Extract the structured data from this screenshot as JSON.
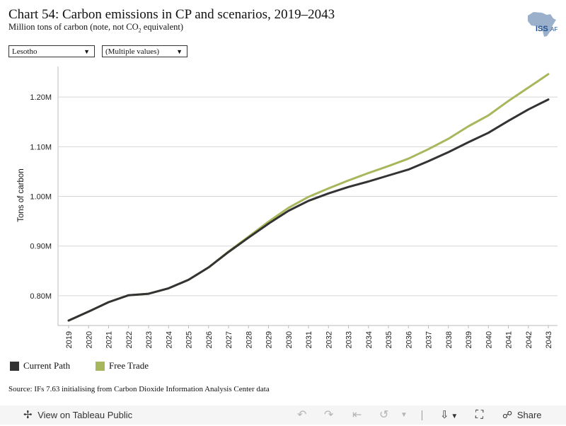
{
  "header": {
    "title": "Chart 54: Carbon emissions in CP and scenarios, 2019–2043",
    "subtitle_pre": "Million tons of carbon (note, not CO",
    "subtitle_sub": "2",
    "subtitle_post": " equivalent)",
    "logo_text": "ISS",
    "logo_suffix": "AF"
  },
  "filters": [
    {
      "value": "Lesotho"
    },
    {
      "value": "(Multiple values)"
    }
  ],
  "colors": {
    "current_path": "#333333",
    "free_trade": "#a7b85c",
    "grid": "#d6d6d6",
    "logo": "#8aa3c2"
  },
  "chart_data": {
    "type": "line",
    "title": "Chart 54: Carbon emissions in CP and scenarios, 2019–2043",
    "ylabel": "Tons of carbon",
    "xlabel": "",
    "ylim": [
      740000,
      1270000
    ],
    "yticks": [
      800000,
      900000,
      1000000,
      1100000,
      1200000
    ],
    "ytick_labels": [
      "0.80M",
      "0.90M",
      "1.00M",
      "1.10M",
      "1.20M"
    ],
    "grid": true,
    "legend_position": "bottom-left",
    "x": [
      "2019",
      "2020",
      "2021",
      "2022",
      "2023",
      "2024",
      "2025",
      "2026",
      "2027",
      "2028",
      "2029",
      "2030",
      "2031",
      "2032",
      "2033",
      "2034",
      "2035",
      "2036",
      "2037",
      "2038",
      "2039",
      "2040",
      "2041",
      "2042",
      "2043"
    ],
    "series": [
      {
        "name": "Current Path",
        "values": [
          750000,
          768000,
          787000,
          801000,
          804000,
          815000,
          832000,
          857000,
          888000,
          917000,
          945000,
          971000,
          991000,
          1006000,
          1019000,
          1030000,
          1042000,
          1054000,
          1071000,
          1089000,
          1109000,
          1128000,
          1152000,
          1175000,
          1195000
        ]
      },
      {
        "name": "Free Trade",
        "values": [
          750000,
          768000,
          787000,
          801000,
          804000,
          815000,
          832000,
          857000,
          889000,
          919000,
          949000,
          977000,
          999000,
          1016000,
          1032000,
          1047000,
          1061000,
          1076000,
          1095000,
          1116000,
          1141000,
          1163000,
          1192000,
          1219000,
          1246000
        ]
      }
    ]
  },
  "source": "Source: IFs 7.63 initialising from Carbon Dioxide Information Analysis Center data",
  "toolbar": {
    "view_label": "View on Tableau Public",
    "share_label": "Share"
  }
}
